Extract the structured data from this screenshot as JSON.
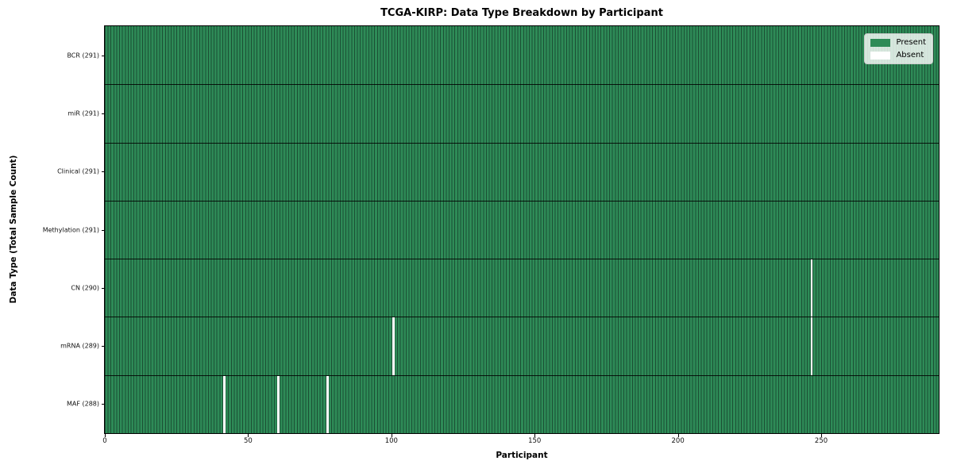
{
  "chart_data": {
    "type": "heatmap",
    "title": "TCGA-KIRP: Data Type Breakdown by Participant",
    "xlabel": "Participant",
    "ylabel": "Data Type (Total Sample Count)",
    "n_participants": 291,
    "x_range": [
      0,
      291
    ],
    "x_ticks": [
      0,
      50,
      100,
      150,
      200,
      250
    ],
    "grid": false,
    "rows": [
      {
        "label": "BCR (291)",
        "data_type": "BCR",
        "present_count": 291,
        "absent_participants": []
      },
      {
        "label": "miR (291)",
        "data_type": "miR",
        "present_count": 291,
        "absent_participants": []
      },
      {
        "label": "Clinical (291)",
        "data_type": "Clinical",
        "present_count": 291,
        "absent_participants": []
      },
      {
        "label": "Methylation (291)",
        "data_type": "Methylation",
        "present_count": 291,
        "absent_participants": []
      },
      {
        "label": "CN (290)",
        "data_type": "CN",
        "present_count": 290,
        "absent_participants": [
          246
        ]
      },
      {
        "label": "mRNA (289)",
        "data_type": "mRNA",
        "present_count": 289,
        "absent_participants": [
          100,
          246
        ]
      },
      {
        "label": "MAF (288)",
        "data_type": "MAF",
        "present_count": 288,
        "absent_participants": [
          41,
          60,
          77
        ]
      }
    ],
    "legend": {
      "position": "upper right",
      "entries": [
        {
          "label": "Present",
          "color": "#2e8b57"
        },
        {
          "label": "Absent",
          "color": "#ffffff"
        }
      ]
    },
    "colors": {
      "present": "#2e8b57",
      "absent": "#ffffff",
      "cell_border": "#1b4f34",
      "row_border": "#000000",
      "legend_bg": "rgba(255,255,255,0.8)"
    }
  }
}
